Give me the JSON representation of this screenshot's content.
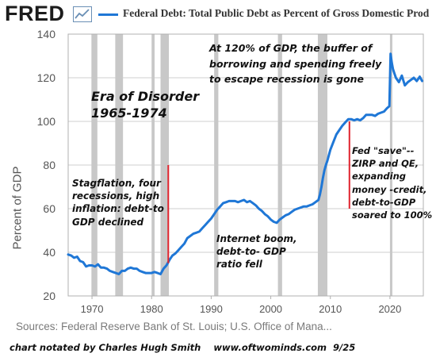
{
  "header": {
    "logo_text": "FRED",
    "logo_icon": "line-chart-icon",
    "legend_label": "Federal Debt: Total Public Debt as Percent of Gross Domestic Prod"
  },
  "colors": {
    "series_line": "#1f77d6",
    "recession_bar": "#c8c8c8",
    "marker_line": "#e0242e",
    "plot_border": "#b0b0b0",
    "gridline": "#cfcfcf"
  },
  "chart_data": {
    "type": "line",
    "title": "Federal Debt: Total Public Debt as Percent of Gross Domestic Prod",
    "xlabel": "",
    "ylabel": "Percent of GDP",
    "xlim": [
      1966,
      2025.6
    ],
    "ylim": [
      20,
      140
    ],
    "yticks": [
      20,
      40,
      60,
      80,
      100,
      120,
      140
    ],
    "xticks": [
      1970,
      1980,
      1990,
      2000,
      2010,
      2020
    ],
    "grid": true,
    "recessions": [
      [
        1969.9,
        1970.9
      ],
      [
        1973.9,
        1975.2
      ],
      [
        1980.0,
        1980.5
      ],
      [
        1981.5,
        1982.9
      ],
      [
        1990.5,
        1991.2
      ],
      [
        2001.2,
        2001.9
      ],
      [
        2007.9,
        2009.5
      ],
      [
        2020.0,
        2020.4
      ]
    ],
    "series": [
      {
        "name": "Federal Debt: Total Public Debt as Percent of Gross Domestic Prod",
        "x": [
          1966,
          1966.5,
          1967,
          1967.5,
          1968,
          1968.5,
          1969,
          1969.5,
          1970,
          1970.5,
          1971,
          1971.5,
          1972,
          1972.5,
          1973,
          1973.5,
          1974,
          1974.5,
          1975,
          1975.5,
          1976,
          1976.5,
          1977,
          1977.5,
          1978,
          1978.5,
          1979,
          1979.5,
          1980,
          1980.5,
          1981,
          1981.5,
          1982,
          1982.5,
          1983,
          1983.5,
          1984,
          1984.5,
          1985,
          1985.5,
          1986,
          1986.5,
          1987,
          1987.5,
          1988,
          1988.5,
          1989,
          1989.5,
          1990,
          1990.5,
          1991,
          1991.5,
          1992,
          1992.5,
          1993,
          1993.5,
          1994,
          1994.5,
          1995,
          1995.5,
          1996,
          1996.5,
          1997,
          1997.5,
          1998,
          1998.5,
          1999,
          1999.5,
          2000,
          2000.5,
          2001,
          2001.5,
          2002,
          2002.5,
          2003,
          2003.5,
          2004,
          2004.5,
          2005,
          2005.5,
          2006,
          2006.5,
          2007,
          2007.5,
          2008,
          2008.25,
          2008.5,
          2008.75,
          2009,
          2009.25,
          2009.5,
          2010,
          2010.5,
          2011,
          2011.5,
          2012,
          2012.5,
          2013,
          2013.5,
          2014,
          2014.5,
          2015,
          2015.5,
          2016,
          2016.5,
          2017,
          2017.5,
          2018,
          2018.5,
          2019,
          2019.5,
          2019.9,
          2020.1,
          2020.3,
          2020.5,
          2020.75,
          2021,
          2021.5,
          2022,
          2022.5,
          2023,
          2023.5,
          2024,
          2024.5,
          2025,
          2025.4
        ],
        "values": [
          39,
          38.5,
          37.5,
          38,
          36,
          35.5,
          33.5,
          34,
          34,
          33.5,
          34.5,
          33,
          33,
          32.5,
          31.5,
          31,
          30.5,
          30,
          31.5,
          31.5,
          32.5,
          33,
          32.5,
          32.5,
          31.5,
          31,
          30.5,
          30.5,
          30.5,
          31,
          30.5,
          30,
          32.5,
          34,
          36.5,
          38.5,
          39.5,
          41,
          42.5,
          44,
          46.5,
          47.5,
          48.5,
          49,
          49.5,
          51,
          52.5,
          54,
          55.5,
          57.5,
          59.5,
          61,
          62.5,
          63,
          63.5,
          63.5,
          63.5,
          63,
          63.5,
          64,
          63,
          63.5,
          62.5,
          61.5,
          60,
          59,
          57.5,
          56.5,
          55,
          54,
          53.5,
          55,
          56,
          57,
          57.5,
          58.5,
          59.5,
          60,
          60.5,
          61,
          61,
          61.5,
          62,
          63,
          64,
          66.5,
          70,
          74,
          77.5,
          80,
          82,
          87,
          90.5,
          94,
          96,
          98,
          99.5,
          101,
          101,
          100.5,
          101,
          100.5,
          101.5,
          103,
          103,
          103,
          102.5,
          103.5,
          104,
          104.5,
          106,
          107,
          131,
          127,
          124,
          122,
          120,
          118,
          121,
          116.5,
          118,
          119,
          120,
          118.5,
          120.5,
          118.5
        ]
      }
    ],
    "marker_lines": [
      {
        "x": 1982.8,
        "y_from": 80,
        "y_to": 35
      },
      {
        "x": 2013.2,
        "y_from": 100,
        "y_to": 60
      }
    ]
  },
  "annotations": {
    "era": "Era of Disorder\n1965-1974",
    "stagflation": "Stagflation, four\nrecessions, high\ninflation: debt-to\nGDP declined",
    "internet": "Internet boom,\ndebt-to- GDP\nratio fell",
    "buffer": "At 120% of GDP, the buffer of\nborrowing and spending freely\nto escape recession is gone",
    "fed": "Fed \"save\"--\nZIRP and QE,\nexpanding\nmoney -credit,\ndebt-to-GDP\nsoared to 100%"
  },
  "sources_text": "Sources: Federal Reserve Bank of St. Louis; U.S. Office of Mana...",
  "footer_text": "chart notated by Charles Hugh Smith    www.oftwominds.com  9/25"
}
